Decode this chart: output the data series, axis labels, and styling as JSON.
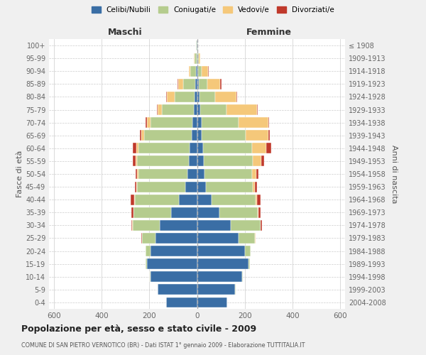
{
  "age_groups": [
    "0-4",
    "5-9",
    "10-14",
    "15-19",
    "20-24",
    "25-29",
    "30-34",
    "35-39",
    "40-44",
    "45-49",
    "50-54",
    "55-59",
    "60-64",
    "65-69",
    "70-74",
    "75-79",
    "80-84",
    "85-89",
    "90-94",
    "95-99",
    "100+"
  ],
  "birth_years": [
    "2004-2008",
    "1999-2003",
    "1994-1998",
    "1989-1993",
    "1984-1988",
    "1979-1983",
    "1974-1978",
    "1969-1973",
    "1964-1968",
    "1959-1963",
    "1954-1958",
    "1949-1953",
    "1944-1948",
    "1939-1943",
    "1934-1938",
    "1929-1933",
    "1924-1928",
    "1919-1923",
    "1914-1918",
    "1909-1913",
    "≤ 1908"
  ],
  "male_celibi": [
    130,
    165,
    195,
    210,
    195,
    175,
    155,
    110,
    75,
    50,
    40,
    35,
    30,
    22,
    20,
    12,
    10,
    8,
    5,
    2,
    1
  ],
  "male_coniugati": [
    0,
    1,
    2,
    5,
    20,
    55,
    115,
    155,
    185,
    200,
    205,
    215,
    215,
    200,
    175,
    135,
    85,
    50,
    22,
    8,
    2
  ],
  "male_vedovi": [
    0,
    0,
    0,
    0,
    0,
    0,
    1,
    1,
    2,
    3,
    5,
    8,
    10,
    12,
    15,
    18,
    32,
    22,
    8,
    2,
    0
  ],
  "male_divorziati": [
    0,
    0,
    0,
    0,
    0,
    2,
    5,
    8,
    15,
    8,
    8,
    12,
    15,
    5,
    5,
    3,
    2,
    2,
    0,
    0,
    0
  ],
  "female_nubili": [
    125,
    160,
    190,
    215,
    200,
    175,
    140,
    95,
    60,
    38,
    30,
    28,
    25,
    20,
    18,
    12,
    10,
    8,
    5,
    2,
    1
  ],
  "female_coniugate": [
    0,
    1,
    2,
    8,
    25,
    68,
    125,
    160,
    185,
    195,
    200,
    205,
    205,
    185,
    155,
    110,
    65,
    35,
    15,
    5,
    2
  ],
  "female_vedove": [
    0,
    0,
    0,
    0,
    0,
    1,
    2,
    3,
    5,
    10,
    18,
    35,
    60,
    95,
    125,
    130,
    90,
    55,
    26,
    6,
    0
  ],
  "female_divorziate": [
    0,
    0,
    0,
    0,
    0,
    2,
    5,
    8,
    15,
    8,
    8,
    12,
    20,
    5,
    5,
    3,
    2,
    5,
    2,
    0,
    0
  ],
  "colors": {
    "celibi_nubili": "#3a6ea5",
    "coniugati_e": "#b5cc8e",
    "vedovi_e": "#f5c87a",
    "divorziati_e": "#c0392b"
  },
  "xlim": 620,
  "title": "Popolazione per età, sesso e stato civile - 2009",
  "subtitle": "COMUNE DI SAN PIETRO VERNOTICO (BR) - Dati ISTAT 1° gennaio 2009 - Elaborazione TUTTITALIA.IT",
  "ylabel_left": "Fasce di età",
  "ylabel_right": "Anni di nascita",
  "xlabel_maschi": "Maschi",
  "xlabel_femmine": "Femmine",
  "legend_labels": [
    "Celibi/Nubili",
    "Coniugati/e",
    "Vedovi/e",
    "Divorziati/e"
  ],
  "bg_color": "#f0f0f0",
  "plot_bg_color": "#ffffff"
}
